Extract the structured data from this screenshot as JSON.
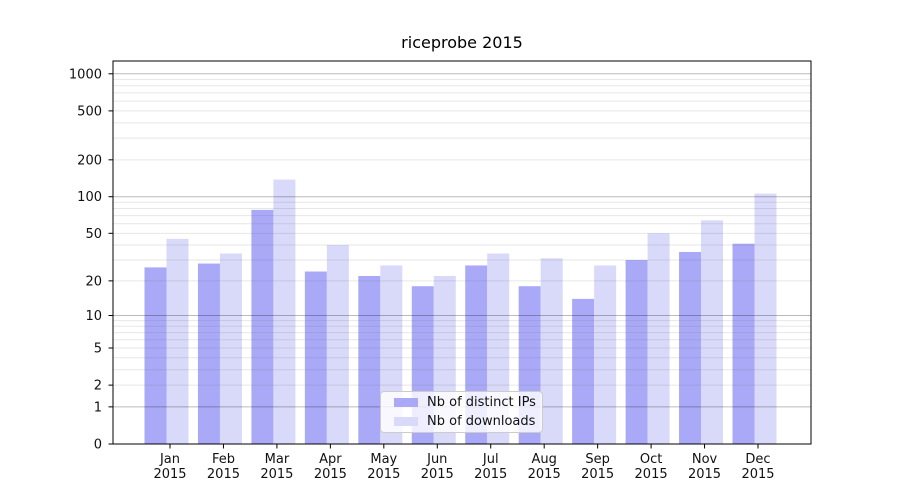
{
  "chart_data": {
    "type": "bar",
    "title": "riceprobe 2015",
    "xlabel": "",
    "ylabel": "",
    "categories": [
      "Jan 2015",
      "Feb 2015",
      "Mar 2015",
      "Apr 2015",
      "May 2015",
      "Jun 2015",
      "Jul 2015",
      "Aug 2015",
      "Sep 2015",
      "Oct 2015",
      "Nov 2015",
      "Dec 2015"
    ],
    "series": [
      {
        "name": "Nb of distinct IPs",
        "color": "#a9a9f7",
        "values": [
          26,
          28,
          78,
          24,
          22,
          18,
          27,
          18,
          14,
          30,
          35,
          41
        ]
      },
      {
        "name": "Nb of downloads",
        "color": "#d9d9f9",
        "values": [
          45,
          34,
          138,
          40,
          27,
          22,
          34,
          31,
          27,
          50,
          64,
          106
        ]
      }
    ],
    "yscale": "log1p",
    "ylim": [
      0,
      1270
    ],
    "yticks_labeled": [
      0,
      1,
      2,
      5,
      10,
      20,
      50,
      100,
      200,
      500,
      1000
    ],
    "gridlines_major": [
      1,
      10,
      100,
      1000
    ],
    "gridlines_minor": [
      2,
      3,
      4,
      5,
      6,
      7,
      8,
      9,
      20,
      30,
      40,
      50,
      60,
      70,
      80,
      90,
      200,
      300,
      400,
      500,
      600,
      700,
      800,
      900
    ],
    "grid": true,
    "legend_position": "inside lower center",
    "colors": {
      "axis": "#000000",
      "tick_label": "#111111",
      "grid_major": "#b9b9b9",
      "grid_minor": "#e9e9e9",
      "legend_border": "#cccccc"
    }
  }
}
